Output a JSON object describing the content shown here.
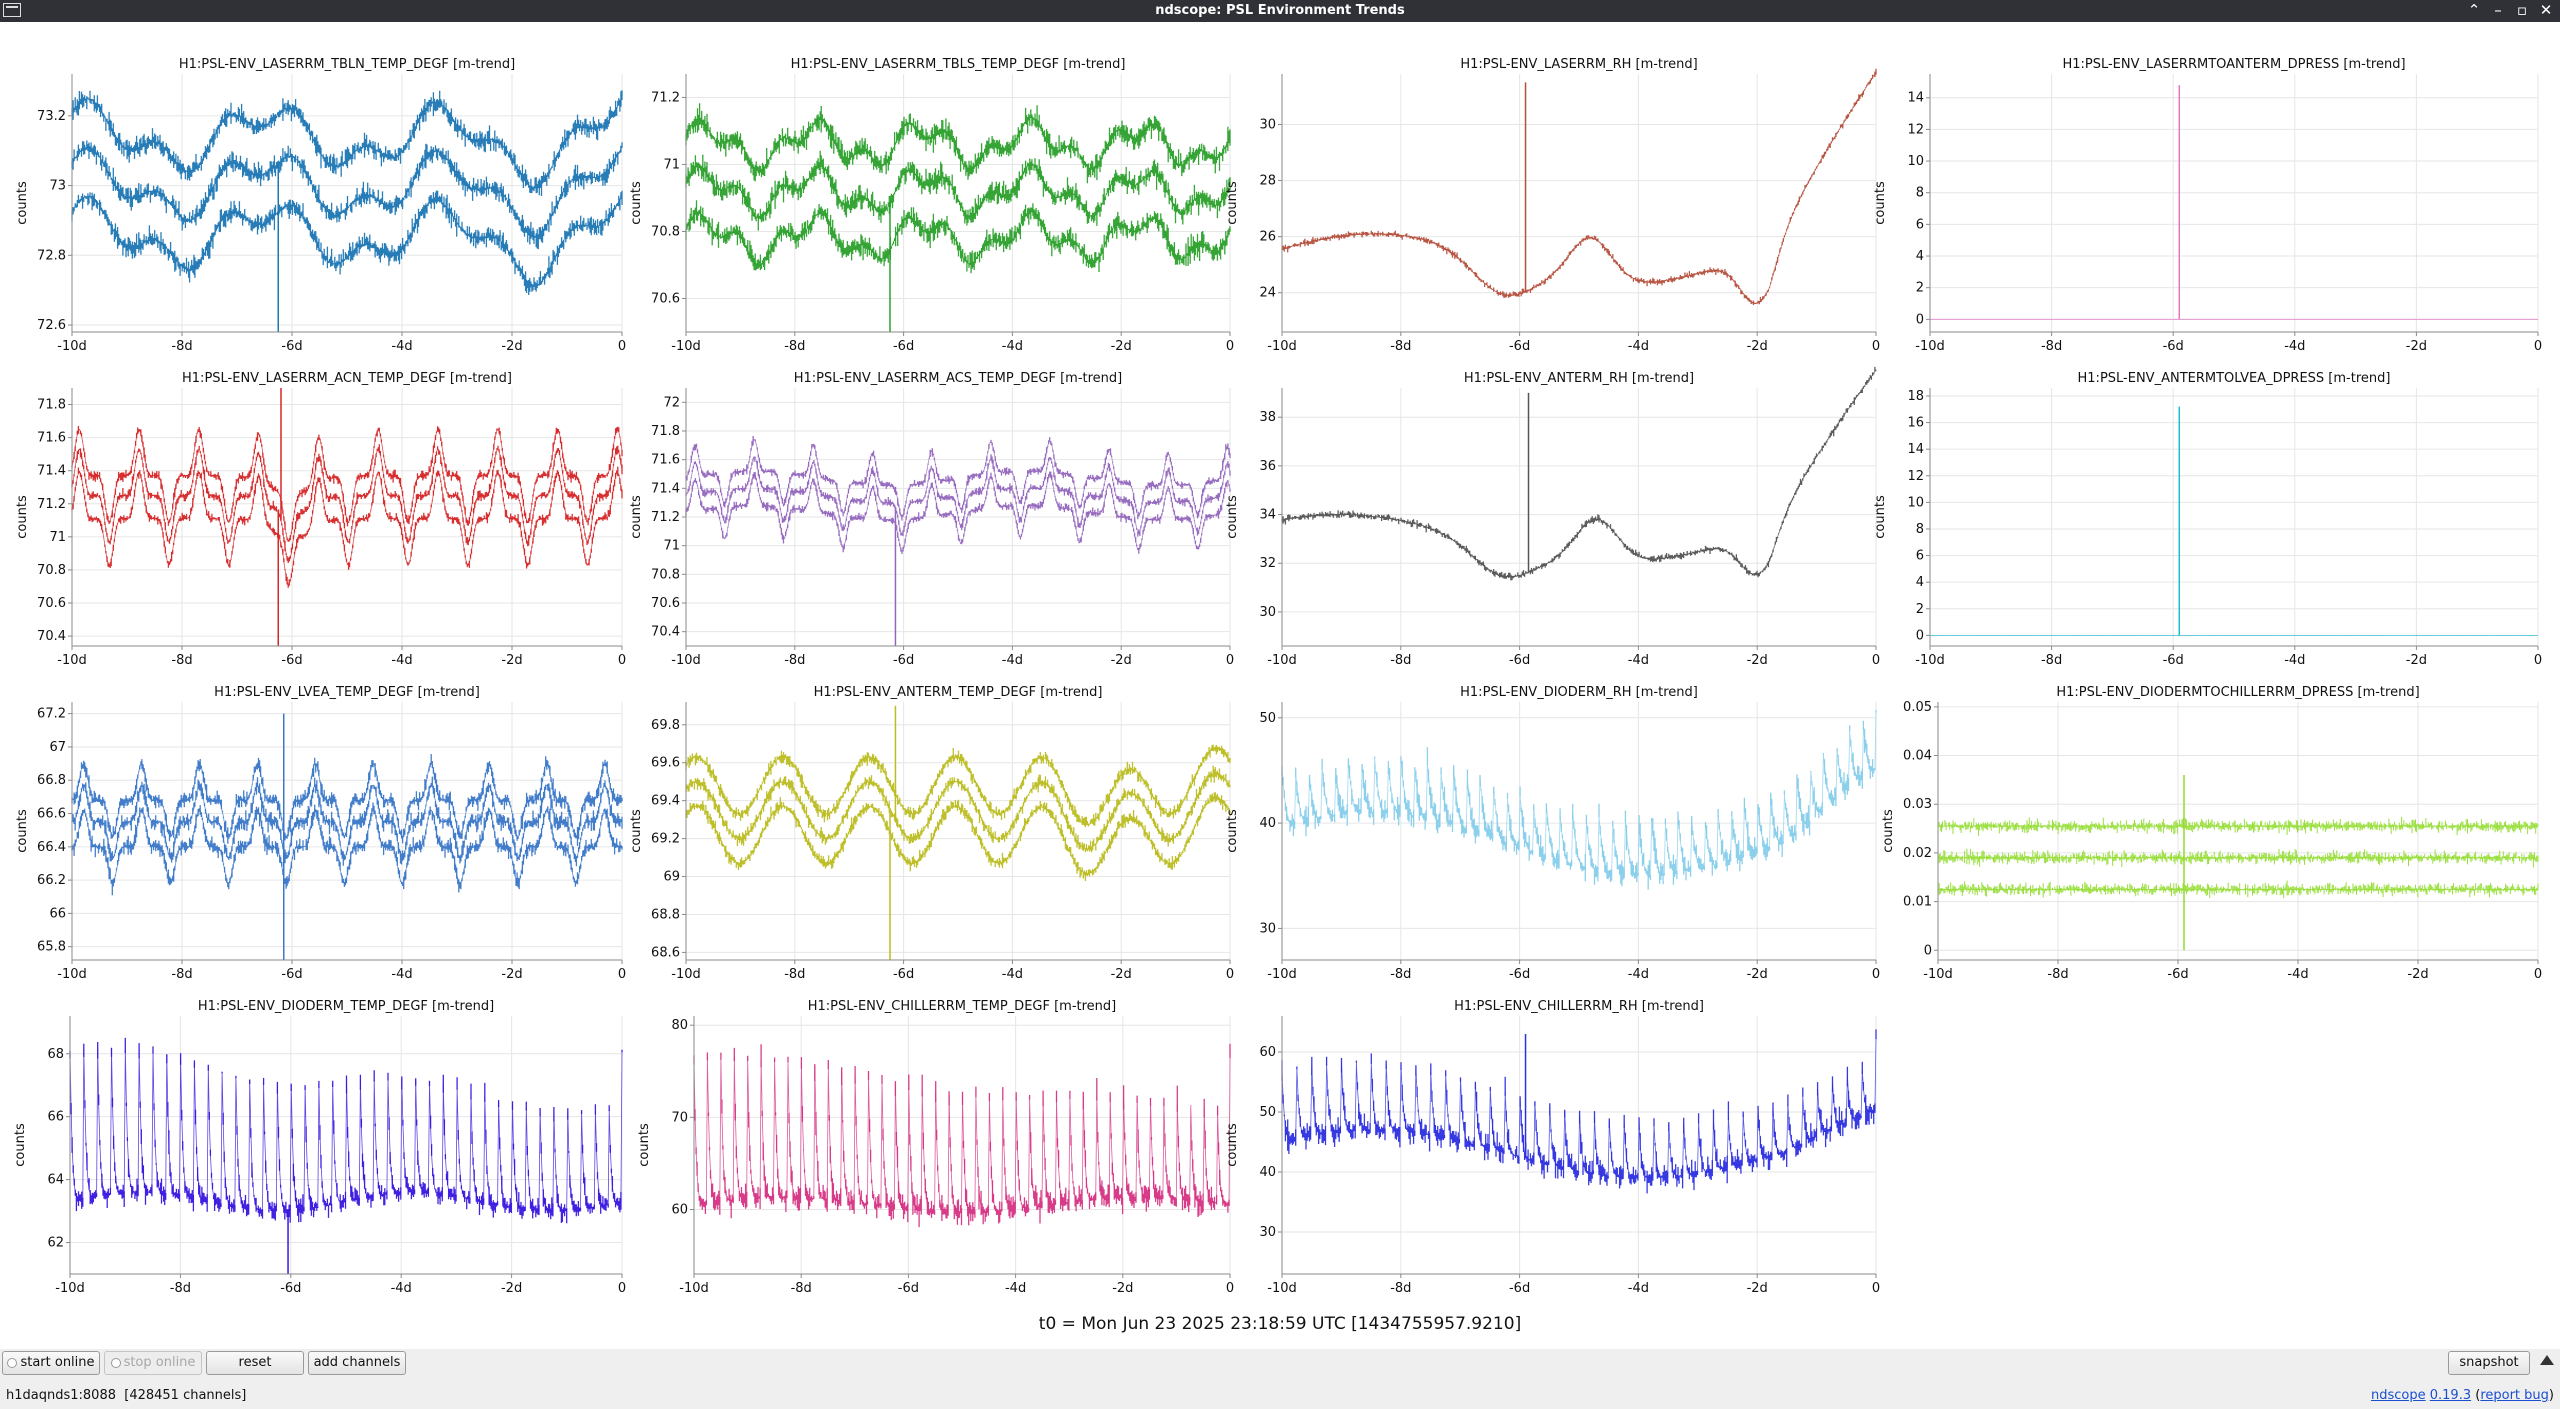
{
  "window": {
    "title": "ndscope: PSL Environment Trends"
  },
  "axis_common": {
    "ylabel": "counts",
    "xticks": [
      "-10d",
      "-8d",
      "-6d",
      "-4d",
      "-2d",
      "0"
    ]
  },
  "plots": [
    {
      "title": "H1:PSL-ENV_LASERRM_TBLN_TEMP_DEGF [m-trend]",
      "color": "#1f77b4",
      "yticks": [
        "72.6",
        "72.8",
        "73",
        "73.2"
      ],
      "ylim": [
        72.58,
        73.32
      ],
      "pattern": "tblnTemp"
    },
    {
      "title": "H1:PSL-ENV_LASERRM_TBLS_TEMP_DEGF [m-trend]",
      "color": "#2ca02c",
      "yticks": [
        "70.6",
        "70.8",
        "71",
        "71.2"
      ],
      "ylim": [
        70.5,
        71.27
      ],
      "pattern": "tblsTemp"
    },
    {
      "title": "H1:PSL-ENV_LASERRM_RH [m-trend]",
      "color": "#b5503d",
      "yticks": [
        "24",
        "26",
        "28",
        "30"
      ],
      "ylim": [
        22.6,
        31.8
      ],
      "pattern": "laserRH"
    },
    {
      "title": "H1:PSL-ENV_LASERRMTOANTERM_DPRESS [m-trend]",
      "color": "#e377c2",
      "yticks": [
        "0",
        "2",
        "4",
        "6",
        "8",
        "10",
        "12",
        "14"
      ],
      "ylim": [
        -0.8,
        15.5
      ],
      "pattern": "spike1"
    },
    {
      "title": "H1:PSL-ENV_LASERRM_ACN_TEMP_DEGF [m-trend]",
      "color": "#d62728",
      "yticks": [
        "70.4",
        "70.6",
        "70.8",
        "71",
        "71.2",
        "71.4",
        "71.6",
        "71.8"
      ],
      "ylim": [
        70.34,
        71.9
      ],
      "pattern": "acnTemp"
    },
    {
      "title": "H1:PSL-ENV_LASERRM_ACS_TEMP_DEGF [m-trend]",
      "color": "#9467bd",
      "yticks": [
        "70.4",
        "70.6",
        "70.8",
        "71",
        "71.2",
        "71.4",
        "71.6",
        "71.8",
        "72"
      ],
      "ylim": [
        70.3,
        72.1
      ],
      "pattern": "acsTemp"
    },
    {
      "title": "H1:PSL-ENV_ANTERM_RH [m-trend]",
      "color": "#555555",
      "yticks": [
        "30",
        "32",
        "34",
        "36",
        "38"
      ],
      "ylim": [
        28.6,
        39.2
      ],
      "pattern": "antermRH"
    },
    {
      "title": "H1:PSL-ENV_ANTERMTOLVEA_DPRESS [m-trend]",
      "color": "#17becf",
      "yticks": [
        "0",
        "2",
        "4",
        "6",
        "8",
        "10",
        "12",
        "14",
        "16",
        "18"
      ],
      "ylim": [
        -0.8,
        18.6
      ],
      "pattern": "spike2"
    },
    {
      "title": "H1:PSL-ENV_LVEA_TEMP_DEGF [m-trend]",
      "color": "#3b78c8",
      "yticks": [
        "65.8",
        "66",
        "66.2",
        "66.4",
        "66.6",
        "66.8",
        "67",
        "67.2"
      ],
      "ylim": [
        65.72,
        67.27
      ],
      "pattern": "lveaTemp"
    },
    {
      "title": "H1:PSL-ENV_ANTERM_TEMP_DEGF [m-trend]",
      "color": "#bcbd22",
      "yticks": [
        "68.6",
        "68.8",
        "69",
        "69.2",
        "69.4",
        "69.6",
        "69.8"
      ],
      "ylim": [
        68.56,
        69.92
      ],
      "pattern": "antermTemp"
    },
    {
      "title": "H1:PSL-ENV_DIODERM_RH [m-trend]",
      "color": "#87ceeb",
      "yticks": [
        "30",
        "40",
        "50"
      ],
      "ylim": [
        27,
        51.5
      ],
      "pattern": "diodeRH"
    },
    {
      "title": "H1:PSL-ENV_DIODERMTOCHILLERRM_DPRESS [m-trend]",
      "color": "#8fdb2a",
      "yticks": [
        "0",
        "0.01",
        "0.02",
        "0.03",
        "0.04",
        "0.05"
      ],
      "ylim": [
        -0.002,
        0.051
      ],
      "pattern": "chillerDP"
    },
    {
      "title": "H1:PSL-ENV_DIODERM_TEMP_DEGF [m-trend]",
      "color": "#3a16e0",
      "yticks": [
        "62",
        "64",
        "66",
        "68"
      ],
      "ylim": [
        61,
        69.2
      ],
      "pattern": "diodeTemp"
    },
    {
      "title": "H1:PSL-ENV_CHILLERRM_TEMP_DEGF [m-trend]",
      "color": "#d63384",
      "yticks": [
        "60",
        "70",
        "80"
      ],
      "ylim": [
        53,
        81
      ],
      "pattern": "chillerTemp"
    },
    {
      "title": "H1:PSL-ENV_CHILLERRM_RH [m-trend]",
      "color": "#2d2fe0",
      "yticks": [
        "30",
        "40",
        "50",
        "60"
      ],
      "ylim": [
        23,
        66
      ],
      "pattern": "chillerRH"
    }
  ],
  "t0": "t0 = Mon Jun 23 2025 23:18:59 UTC [1434755957.9210]",
  "toolbar": {
    "start_online": "start online",
    "stop_online": "stop online",
    "reset": "reset",
    "add_channels": "add channels",
    "snapshot": "snapshot"
  },
  "status": {
    "server": "h1daqnds1:8088",
    "channels": "[428451 channels]",
    "app_name": "ndscope",
    "version": "0.19.3",
    "report_bug": "report bug"
  }
}
